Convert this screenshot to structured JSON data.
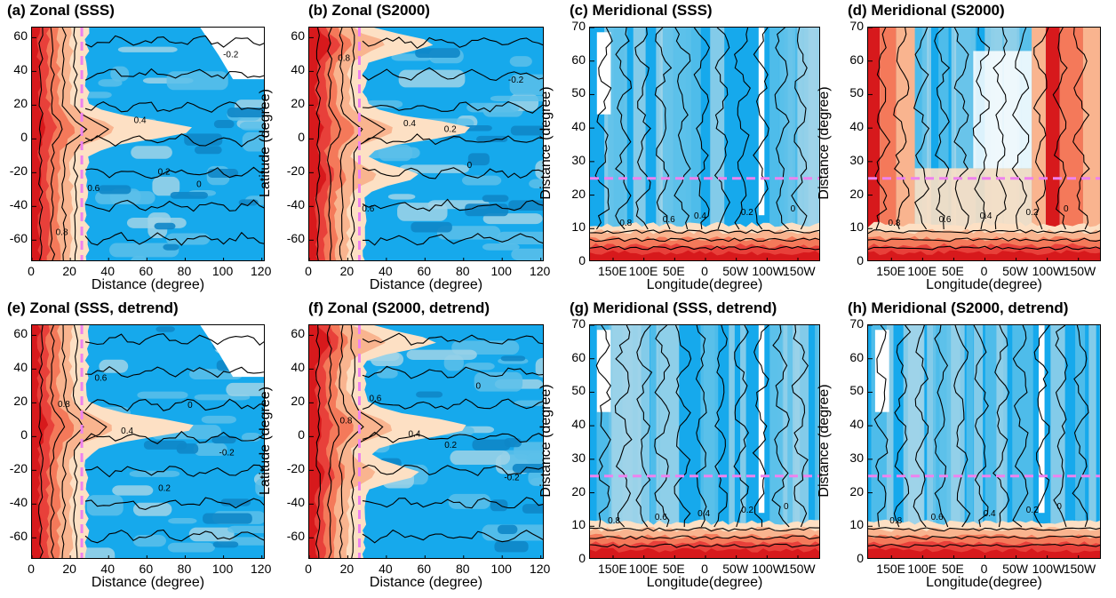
{
  "colors": {
    "deep_red": "#d7191c",
    "red": "#e8403a",
    "orange": "#f4795a",
    "light_orange": "#f9b48f",
    "peach": "#fde0c4",
    "white": "#ffffff",
    "light_blue": "#9fd3e8",
    "sky": "#5cc0ea",
    "blue": "#16a9ec",
    "mid_blue": "#0e86c8",
    "dark_blue": "#1761a3",
    "contour": "#000000",
    "dashed_marker": "#ee82ee"
  },
  "chart_data": [
    {
      "id": "a",
      "type": "heatmap",
      "title": "(a) Zonal (SSS)",
      "xlabel": "Distance (degree)",
      "ylabel": "",
      "xlim": [
        0,
        122
      ],
      "ylim": [
        -73,
        66
      ],
      "xticks": [
        "0",
        "20",
        "40",
        "60",
        "80",
        "100",
        "120"
      ],
      "yticks": [
        "60",
        "40",
        "20",
        "0",
        "-20",
        "-40",
        "-60"
      ],
      "dashed_line": {
        "axis": "x",
        "value": 26
      },
      "contour_labels": [
        "0.8",
        "0.6",
        "0.4",
        "0.2",
        "0",
        "-0.2"
      ]
    },
    {
      "id": "b",
      "type": "heatmap",
      "title": "(b) Zonal (S2000)",
      "xlabel": "Distance (degree)",
      "ylabel": "Latitude (degree)",
      "xlim": [
        0,
        122
      ],
      "ylim": [
        -73,
        66
      ],
      "xticks": [
        "0",
        "20",
        "40",
        "60",
        "80",
        "100",
        "120"
      ],
      "yticks": [
        "60",
        "40",
        "20",
        "0",
        "-20",
        "-40",
        "-60"
      ],
      "dashed_line": {
        "axis": "x",
        "value": 26
      },
      "contour_labels": [
        "0.8",
        "0.6",
        "0.4",
        "0.2",
        "0",
        "-0.2"
      ]
    },
    {
      "id": "c",
      "type": "heatmap",
      "title": "(c) Meridional (SSS)",
      "xlabel": "Longitude(degree)",
      "ylabel": "Distance (degree)",
      "ylim": [
        0,
        70
      ],
      "xticks": [
        "150E",
        "100E",
        "50E",
        "0",
        "50W",
        "100W",
        "150W"
      ],
      "yticks": [
        "70",
        "60",
        "50",
        "40",
        "30",
        "20",
        "10",
        "0"
      ],
      "dashed_line": {
        "axis": "y",
        "value": 25
      },
      "contour_labels": [
        "0.8",
        "0.6",
        "0.4",
        "0.2",
        "0"
      ]
    },
    {
      "id": "d",
      "type": "heatmap",
      "title": "(d) Meridional (S2000)",
      "xlabel": "Longitude(degree)",
      "ylabel": "Distance (degree)",
      "ylim": [
        0,
        70
      ],
      "xticks": [
        "150E",
        "100E",
        "50E",
        "0",
        "50W",
        "100W",
        "150W"
      ],
      "yticks": [
        "70",
        "60",
        "50",
        "40",
        "30",
        "20",
        "10",
        "0"
      ],
      "dashed_line": {
        "axis": "y",
        "value": 25
      },
      "contour_labels": [
        "0.8",
        "0.6",
        "0.4",
        "0.2",
        "0"
      ]
    },
    {
      "id": "e",
      "type": "heatmap",
      "title": "(e) Zonal (SSS, detrend)",
      "xlabel": "Distance (degree)",
      "ylabel": "",
      "xlim": [
        0,
        122
      ],
      "ylim": [
        -73,
        66
      ],
      "xticks": [
        "0",
        "20",
        "40",
        "60",
        "80",
        "100",
        "120"
      ],
      "yticks": [
        "60",
        "40",
        "20",
        "0",
        "-20",
        "-40",
        "-60"
      ],
      "dashed_line": {
        "axis": "x",
        "value": 26
      },
      "contour_labels": [
        "0.8",
        "0.6",
        "0.4",
        "0.2",
        "0",
        "-0.2"
      ]
    },
    {
      "id": "f",
      "type": "heatmap",
      "title": "(f) Zonal (S2000, detrend)",
      "xlabel": "Distance (degree)",
      "ylabel": "Latitude (degree)",
      "xlim": [
        0,
        122
      ],
      "ylim": [
        -73,
        66
      ],
      "xticks": [
        "0",
        "20",
        "40",
        "60",
        "80",
        "100",
        "120"
      ],
      "yticks": [
        "60",
        "40",
        "20",
        "0",
        "-20",
        "-40",
        "-60"
      ],
      "dashed_line": {
        "axis": "x",
        "value": 26
      },
      "contour_labels": [
        "0.8",
        "0.6",
        "0.4",
        "0.2",
        "0",
        "-0.2"
      ]
    },
    {
      "id": "g",
      "type": "heatmap",
      "title": "(g) Meridional (SSS, detrend)",
      "xlabel": "Longitude(degree)",
      "ylabel": "Distance (degree)",
      "ylim": [
        0,
        70
      ],
      "xticks": [
        "150E",
        "100E",
        "50E",
        "0",
        "50W",
        "100W",
        "150W"
      ],
      "yticks": [
        "70",
        "60",
        "50",
        "40",
        "30",
        "20",
        "10",
        "0"
      ],
      "dashed_line": {
        "axis": "y",
        "value": 25
      },
      "contour_labels": [
        "0.8",
        "0.6",
        "0.4",
        "0.2",
        "0"
      ]
    },
    {
      "id": "h",
      "type": "heatmap",
      "title": "(h) Meridional (S2000, detrend)",
      "xlabel": "Longitude(degree)",
      "ylabel": "Distance (degree)",
      "ylim": [
        0,
        70
      ],
      "xticks": [
        "150E",
        "100E",
        "50E",
        "0",
        "50W",
        "100W",
        "150W"
      ],
      "yticks": [
        "70",
        "60",
        "50",
        "40",
        "30",
        "20",
        "10",
        "0"
      ],
      "dashed_line": {
        "axis": "y",
        "value": 25
      },
      "contour_labels": [
        "0.8",
        "0.6",
        "0.4",
        "0.2",
        "0"
      ]
    }
  ]
}
